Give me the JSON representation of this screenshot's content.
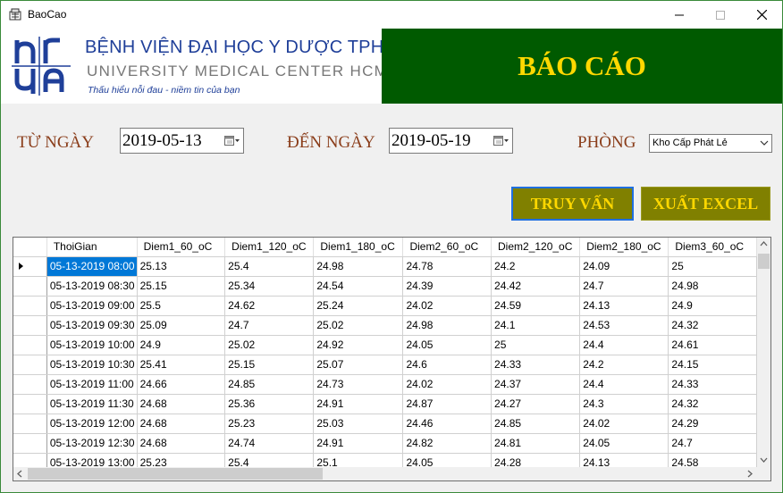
{
  "window": {
    "title": "BaoCao"
  },
  "header": {
    "hospital_name_vn": "BỆNH VIỆN ĐẠI HỌC Y DƯỢC TPHCM",
    "hospital_name_en": "UNIVERSITY MEDICAL CENTER HCMC",
    "slogan": "Thấu hiểu nỗi đau - niềm tin của bạn",
    "report_title": "BÁO CÁO"
  },
  "filters": {
    "from_label": "TỪ NGÀY",
    "from_value": "2019-05-13",
    "to_label": "ĐẾN NGÀY",
    "to_value": "2019-05-19",
    "room_label": "PHÒNG",
    "room_value": "Kho Cấp Phát Lẻ"
  },
  "actions": {
    "query_label": "TRUY VẤN",
    "export_label": "XUẤT EXCEL"
  },
  "grid": {
    "columns": [
      "ThoiGian",
      "Diem1_60_oC",
      "Diem1_120_oC",
      "Diem1_180_oC",
      "Diem2_60_oC",
      "Diem2_120_oC",
      "Diem2_180_oC",
      "Diem3_60_oC"
    ],
    "rows": [
      [
        "05-13-2019 08:00",
        "25.13",
        "25.4",
        "24.98",
        "24.78",
        "24.2",
        "24.09",
        "25"
      ],
      [
        "05-13-2019 08:30",
        "25.15",
        "25.34",
        "24.54",
        "24.39",
        "24.42",
        "24.7",
        "24.98"
      ],
      [
        "05-13-2019 09:00",
        "25.5",
        "24.62",
        "25.24",
        "24.02",
        "24.59",
        "24.13",
        "24.9"
      ],
      [
        "05-13-2019 09:30",
        "25.09",
        "24.7",
        "25.02",
        "24.98",
        "24.1",
        "24.53",
        "24.32"
      ],
      [
        "05-13-2019 10:00",
        "24.9",
        "25.02",
        "24.92",
        "24.05",
        "25",
        "24.4",
        "24.61"
      ],
      [
        "05-13-2019 10:30",
        "25.41",
        "25.15",
        "25.07",
        "24.6",
        "24.33",
        "24.2",
        "24.15"
      ],
      [
        "05-13-2019 11:00",
        "24.66",
        "24.85",
        "24.73",
        "24.02",
        "24.37",
        "24.4",
        "24.33"
      ],
      [
        "05-13-2019 11:30",
        "24.68",
        "25.36",
        "24.91",
        "24.87",
        "24.27",
        "24.3",
        "24.32"
      ],
      [
        "05-13-2019 12:00",
        "24.68",
        "25.23",
        "25.03",
        "24.46",
        "24.85",
        "24.02",
        "24.29"
      ],
      [
        "05-13-2019 12:30",
        "24.68",
        "24.74",
        "24.91",
        "24.82",
        "24.81",
        "24.05",
        "24.7"
      ],
      [
        "05-13-2019 13:00",
        "25.23",
        "25.4",
        "25.1",
        "24.05",
        "24.28",
        "24.13",
        "24.58"
      ]
    ]
  }
}
